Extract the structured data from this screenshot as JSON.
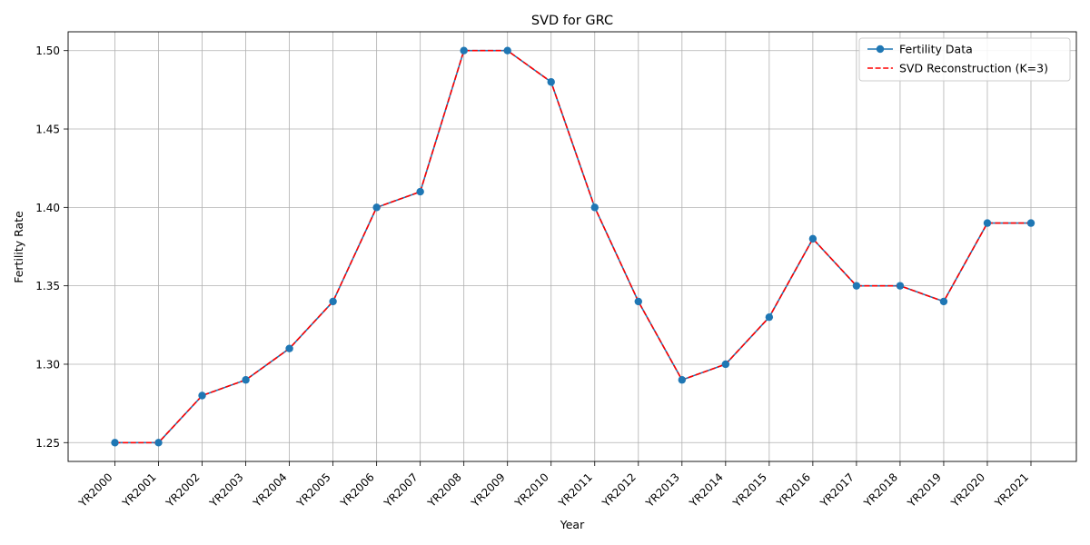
{
  "chart_data": {
    "type": "line",
    "title": "SVD for GRC",
    "xlabel": "Year",
    "ylabel": "Fertility Rate",
    "categories": [
      "YR2000",
      "YR2001",
      "YR2002",
      "YR2003",
      "YR2004",
      "YR2005",
      "YR2006",
      "YR2007",
      "YR2008",
      "YR2009",
      "YR2010",
      "YR2011",
      "YR2012",
      "YR2013",
      "YR2014",
      "YR2015",
      "YR2016",
      "YR2017",
      "YR2018",
      "YR2019",
      "YR2020",
      "YR2021"
    ],
    "ylim": [
      1.238,
      1.512
    ],
    "yticks": [
      1.25,
      1.3,
      1.35,
      1.4,
      1.45,
      1.5
    ],
    "ytick_labels": [
      "1.25",
      "1.30",
      "1.35",
      "1.40",
      "1.45",
      "1.50"
    ],
    "grid": true,
    "legend_position": "top-right",
    "series": [
      {
        "name": "Fertility Data",
        "style": "solid-line-with-circle-markers",
        "color": "#1f77b4",
        "values": [
          1.25,
          1.25,
          1.28,
          1.29,
          1.31,
          1.34,
          1.4,
          1.41,
          1.5,
          1.5,
          1.48,
          1.4,
          1.34,
          1.29,
          1.3,
          1.33,
          1.38,
          1.35,
          1.35,
          1.34,
          1.39,
          1.39
        ]
      },
      {
        "name": "SVD Reconstruction (K=3)",
        "style": "dashed-line",
        "color": "#ff0000",
        "values": [
          1.25,
          1.25,
          1.28,
          1.29,
          1.31,
          1.34,
          1.4,
          1.41,
          1.5,
          1.5,
          1.48,
          1.4,
          1.34,
          1.29,
          1.3,
          1.33,
          1.38,
          1.35,
          1.35,
          1.34,
          1.39,
          1.39
        ]
      }
    ]
  }
}
